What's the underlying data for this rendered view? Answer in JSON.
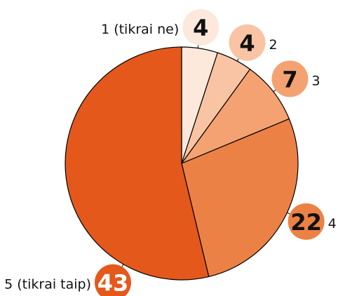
{
  "chart_data": {
    "type": "pie",
    "categories": [
      "1 (tikrai ne)",
      "2",
      "3",
      "4",
      "5 (tikrai taip)"
    ],
    "values": [
      4,
      4,
      7,
      22,
      43
    ],
    "colors": [
      "#fde8dc",
      "#f9c4a3",
      "#f4a272",
      "#ec8146",
      "#e4581c"
    ]
  }
}
